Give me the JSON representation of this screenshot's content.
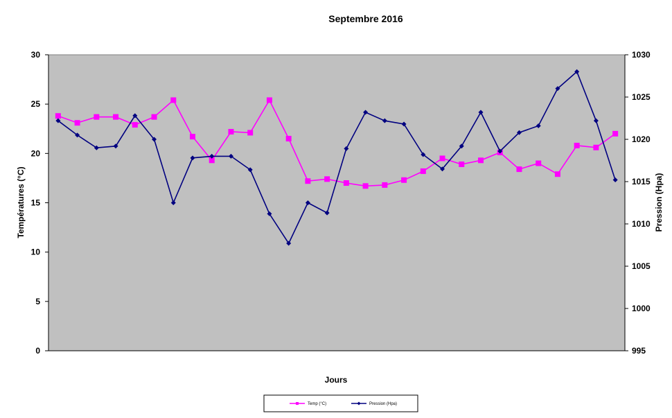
{
  "chart_data": {
    "type": "line",
    "title": "Septembre 2016",
    "xlabel": "Jours",
    "ylabel": "Températures (°C)",
    "y2label": "Pression (Hpa)",
    "ylim": [
      0,
      30
    ],
    "y2lim": [
      995,
      1030
    ],
    "yticks": [
      "0",
      "5",
      "10",
      "15",
      "20",
      "25",
      "30"
    ],
    "y2ticks": [
      "995",
      "1000",
      "1005",
      "1010",
      "1015",
      "1020",
      "1025",
      "1030"
    ],
    "x": [
      1,
      2,
      3,
      4,
      5,
      6,
      7,
      8,
      9,
      10,
      11,
      12,
      13,
      14,
      15,
      16,
      17,
      18,
      19,
      20,
      21,
      22,
      23,
      24,
      25,
      26,
      27,
      28,
      29,
      30
    ],
    "series": [
      {
        "name": "Temp (°C)",
        "axis": "left",
        "color": "#ff00ff",
        "marker": "square",
        "values": [
          23.8,
          23.1,
          23.7,
          23.7,
          22.9,
          23.7,
          25.4,
          21.7,
          19.3,
          22.2,
          22.1,
          25.4,
          21.5,
          17.2,
          17.4,
          17.0,
          16.7,
          16.8,
          17.3,
          18.2,
          19.5,
          18.9,
          19.3,
          20.1,
          18.4,
          19.0,
          17.9,
          20.8,
          20.6,
          22.0
        ]
      },
      {
        "name": "Pression (Hpa)",
        "axis": "right",
        "color": "#000080",
        "marker": "diamond",
        "values": [
          1022.2,
          1020.5,
          1019.0,
          1019.2,
          1022.8,
          1020.0,
          1012.5,
          1017.8,
          1018.0,
          1018.0,
          1016.4,
          1011.2,
          1007.7,
          1012.5,
          1011.3,
          1018.9,
          1023.2,
          1022.2,
          1021.8,
          1018.2,
          1016.5,
          1019.2,
          1023.2,
          1018.6,
          1020.8,
          1021.6,
          1026.0,
          1028.0,
          1022.2,
          1015.2
        ]
      }
    ],
    "grid": false,
    "plot_background": "#c0c0c0",
    "legend_position": "bottom"
  }
}
